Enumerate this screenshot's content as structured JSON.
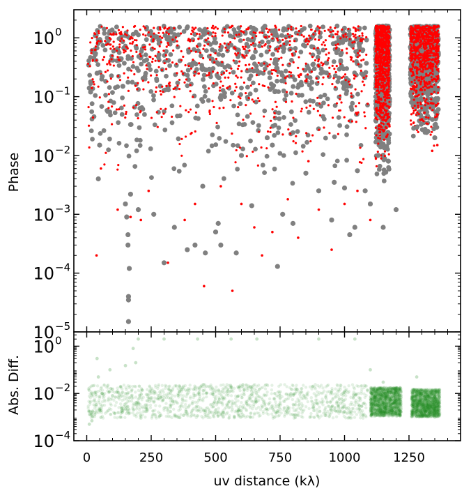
{
  "chart_data": [
    {
      "type": "scatter",
      "title": "",
      "xlabel": "",
      "ylabel": "Phase",
      "yscale": "log",
      "xlim": [
        -50,
        1450
      ],
      "ylim": [
        1e-05,
        3
      ],
      "x_ticks": [
        0,
        250,
        500,
        750,
        1000,
        1250
      ],
      "y_ticks": [
        {
          "value": 1e-05,
          "base": "10",
          "exp": "−5"
        },
        {
          "value": 0.0001,
          "base": "10",
          "exp": "−4"
        },
        {
          "value": 0.001,
          "base": "10",
          "exp": "−3"
        },
        {
          "value": 0.01,
          "base": "10",
          "exp": "−2"
        },
        {
          "value": 0.1,
          "base": "10",
          "exp": "−1"
        },
        {
          "value": 1,
          "base": "10",
          "exp": "0"
        }
      ],
      "series": [
        {
          "color": "#808080",
          "marker": "circle",
          "points": [
            [
              10,
              0.14
            ],
            [
              15,
              0.12
            ],
            [
              40,
              0.25
            ],
            [
              45,
              0.004
            ],
            [
              50,
              0.015
            ],
            [
              60,
              0.22
            ],
            [
              140,
              0.15
            ],
            [
              150,
              0.0015
            ],
            [
              155,
              0.0009
            ],
            [
              160,
              0.00045
            ],
            [
              160,
              0.0003
            ],
            [
              162,
              4e-05
            ],
            [
              162,
              3.5e-05
            ],
            [
              162,
              1.5e-05
            ],
            [
              165,
              0.00012
            ],
            [
              170,
              0.0022
            ],
            [
              200,
              0.0012
            ],
            [
              260,
              0.001
            ],
            [
              300,
              0.00015
            ],
            [
              340,
              0.0006
            ],
            [
              390,
              0.00025
            ],
            [
              420,
              0.0003
            ],
            [
              450,
              0.003
            ],
            [
              460,
              0.00022
            ],
            [
              500,
              0.0005
            ],
            [
              510,
              0.0007
            ],
            [
              520,
              0.0003
            ],
            [
              580,
              0.00022
            ],
            [
              600,
              0.01
            ],
            [
              640,
              0.0014
            ],
            [
              700,
              0.02
            ],
            [
              720,
              0.015
            ],
            [
              740,
              0.00013
            ],
            [
              760,
              0.001
            ],
            [
              800,
              0.0007
            ],
            [
              850,
              0.005
            ],
            [
              900,
              0.0025
            ],
            [
              950,
              0.0008
            ],
            [
              960,
              0.0035
            ],
            [
              1000,
              0.0028
            ],
            [
              1020,
              0.00045
            ],
            [
              1040,
              0.0006
            ],
            [
              1050,
              0.0055
            ],
            [
              1080,
              0.0025
            ],
            [
              1100,
              0.0015
            ],
            [
              1130,
              0.01
            ],
            [
              1150,
              0.0006
            ],
            [
              1170,
              0.008
            ],
            [
              1200,
              0.0012
            ],
            [
              1260,
              0.08
            ],
            [
              1280,
              0.03
            ],
            [
              1300,
              0.6
            ],
            [
              1320,
              0.2
            ],
            [
              1350,
              0.02
            ],
            [
              1355,
              0.25
            ]
          ]
        },
        {
          "color": "#ff0000",
          "marker": "star",
          "points": [
            [
              20,
              0.14
            ],
            [
              38,
              0.0002
            ],
            [
              55,
              0.006
            ],
            [
              120,
              0.0012
            ],
            [
              170,
              0.0009
            ],
            [
              210,
              0.0008
            ],
            [
              240,
              0.0025
            ],
            [
              315,
              0.00015
            ],
            [
              380,
              0.0008
            ],
            [
              420,
              0.0015
            ],
            [
              455,
              6e-05
            ],
            [
              520,
              0.003
            ],
            [
              565,
              5e-05
            ],
            [
              600,
              0.0015
            ],
            [
              650,
              0.0006
            ],
            [
              680,
              0.0002
            ],
            [
              720,
              0.0005
            ],
            [
              780,
              0.0018
            ],
            [
              820,
              0.0004
            ],
            [
              860,
              0.008
            ],
            [
              900,
              0.0012
            ],
            [
              950,
              0.00025
            ],
            [
              1000,
              0.0015
            ],
            [
              1050,
              0.0025
            ],
            [
              1100,
              0.0008
            ],
            [
              1140,
              0.06
            ],
            [
              1160,
              0.03
            ],
            [
              1300,
              0.2
            ],
            [
              1340,
              0.012
            ],
            [
              1360,
              0.015
            ]
          ]
        }
      ],
      "dense_bands": [
        {
          "color": "#808080",
          "x_min": 5,
          "x_max": 1090,
          "y_min": 0.002,
          "y_max": 1.6
        },
        {
          "color": "#ff0000",
          "x_min": 5,
          "x_max": 1090,
          "y_min": 0.003,
          "y_max": 1.6
        },
        {
          "color": "#808080",
          "x_min": 1120,
          "x_max": 1175,
          "y_min": 0.002,
          "y_max": 1.6
        },
        {
          "color": "#ff0000",
          "x_min": 1120,
          "x_max": 1175,
          "y_min": 0.004,
          "y_max": 1.6
        },
        {
          "color": "#808080",
          "x_min": 1255,
          "x_max": 1365,
          "y_min": 0.01,
          "y_max": 1.6
        },
        {
          "color": "#ff0000",
          "x_min": 1255,
          "x_max": 1365,
          "y_min": 0.012,
          "y_max": 1.6
        }
      ]
    },
    {
      "type": "scatter",
      "title": "",
      "xlabel": "uv distance (kλ)",
      "ylabel": "Abs. Diff.",
      "yscale": "log",
      "xlim": [
        -50,
        1450
      ],
      "ylim": [
        0.0001,
        4
      ],
      "x_ticks": [
        0,
        250,
        500,
        750,
        1000,
        1250
      ],
      "y_ticks": [
        {
          "value": 0.0001,
          "base": "10",
          "exp": "−4"
        },
        {
          "value": 0.01,
          "base": "10",
          "exp": "−2"
        },
        {
          "value": 1,
          "base": "10",
          "exp": "0"
        }
      ],
      "series": [
        {
          "color": "#228b22",
          "marker": "circle",
          "alpha": 0.12,
          "points": [
            [
              10,
              0.0005
            ],
            [
              20,
              0.0007
            ],
            [
              40,
              0.3
            ],
            [
              45,
              0.05
            ],
            [
              50,
              0.002
            ],
            [
              60,
              0.01
            ],
            [
              90,
              0.1
            ],
            [
              100,
              0.008
            ],
            [
              130,
              0.001
            ],
            [
              150,
              0.15
            ],
            [
              180,
              0.8
            ],
            [
              190,
              0.2
            ],
            [
              200,
              2
            ],
            [
              300,
              2
            ],
            [
              430,
              2
            ],
            [
              560,
              2
            ],
            [
              660,
              2
            ],
            [
              900,
              2
            ],
            [
              1040,
              2
            ],
            [
              1100,
              0.1
            ],
            [
              1150,
              0.03
            ],
            [
              1200,
              0.005
            ],
            [
              1280,
              0.05
            ],
            [
              1350,
              0.001
            ]
          ]
        }
      ],
      "dense_bands": [
        {
          "color": "#228b22",
          "x_min": 5,
          "x_max": 1090,
          "y_min": 0.0002,
          "y_max": 0.08
        },
        {
          "color": "#228b22",
          "x_min": 1100,
          "x_max": 1220,
          "y_min": 0.0003,
          "y_max": 0.05
        },
        {
          "color": "#228b22",
          "x_min": 1260,
          "x_max": 1370,
          "y_min": 0.0003,
          "y_max": 0.04
        }
      ]
    }
  ]
}
